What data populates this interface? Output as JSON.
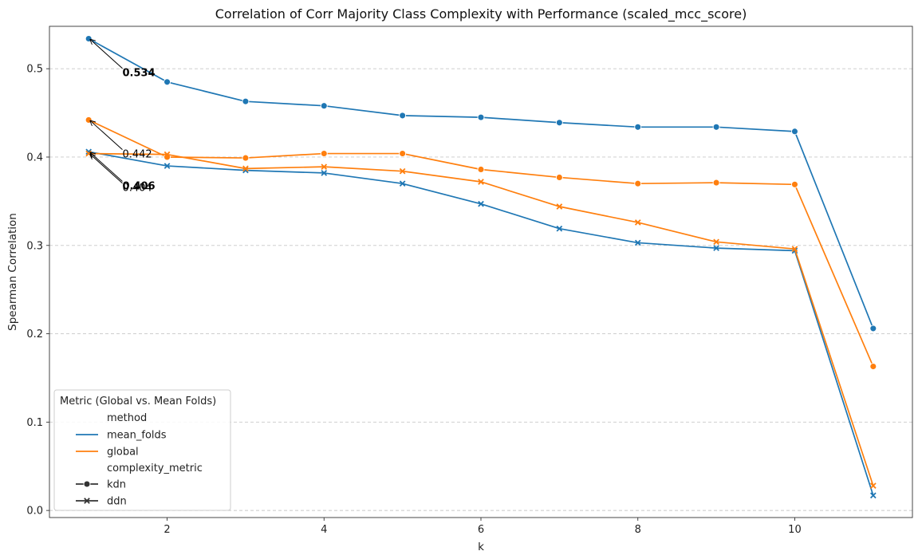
{
  "chart_data": {
    "type": "line",
    "title": "Correlation of Corr Majority Class Complexity with Performance (scaled_mcc_score)",
    "xlabel": "k",
    "ylabel": "Spearman Correlation",
    "xlim": [
      0.5,
      11.5
    ],
    "ylim": [
      -0.008,
      0.548
    ],
    "xticks": [
      2,
      4,
      6,
      8,
      10
    ],
    "yticks": [
      0.0,
      0.1,
      0.2,
      0.3,
      0.4,
      0.5
    ],
    "grid": "horizontal dashed",
    "legend_placement": "lower-left",
    "legend": {
      "title": "Metric (Global vs. Mean Folds)",
      "hue_header": "method",
      "style_header": "complexity_metric"
    },
    "x": [
      1,
      2,
      3,
      4,
      5,
      6,
      7,
      8,
      9,
      10,
      11
    ],
    "series": [
      {
        "method": "mean_folds",
        "complexity_metric": "kdn",
        "color": "#1f77b4",
        "marker": "circle",
        "values": [
          0.534,
          0.485,
          0.463,
          0.458,
          0.447,
          0.445,
          0.439,
          0.434,
          0.434,
          0.429,
          0.206
        ]
      },
      {
        "method": "mean_folds",
        "complexity_metric": "ddn",
        "color": "#1f77b4",
        "marker": "x",
        "values": [
          0.406,
          0.39,
          0.385,
          0.382,
          0.37,
          0.347,
          0.319,
          0.303,
          0.297,
          0.294,
          0.017
        ]
      },
      {
        "method": "global",
        "complexity_metric": "kdn",
        "color": "#ff7f0e",
        "marker": "circle",
        "values": [
          0.442,
          0.4,
          0.399,
          0.404,
          0.404,
          0.386,
          0.377,
          0.37,
          0.371,
          0.369,
          0.163
        ]
      },
      {
        "method": "global",
        "complexity_metric": "ddn",
        "color": "#ff7f0e",
        "marker": "x",
        "values": [
          0.404,
          0.403,
          0.387,
          0.389,
          0.384,
          0.372,
          0.344,
          0.326,
          0.304,
          0.296,
          0.028
        ]
      }
    ],
    "annotations": [
      {
        "text": "0.534",
        "x": 1,
        "y": 0.534,
        "text_x": 1.43,
        "text_y": 0.495,
        "bold": true
      },
      {
        "text": "0.442",
        "x": 1,
        "y": 0.442,
        "text_x": 1.43,
        "text_y": 0.403,
        "bold": false
      },
      {
        "text": "0.404",
        "x": 1,
        "y": 0.404,
        "text_x": 1.43,
        "text_y": 0.365,
        "bold": false
      },
      {
        "text": "0.406",
        "x": 1,
        "y": 0.406,
        "text_x": 1.43,
        "text_y": 0.367,
        "bold": true
      }
    ]
  }
}
